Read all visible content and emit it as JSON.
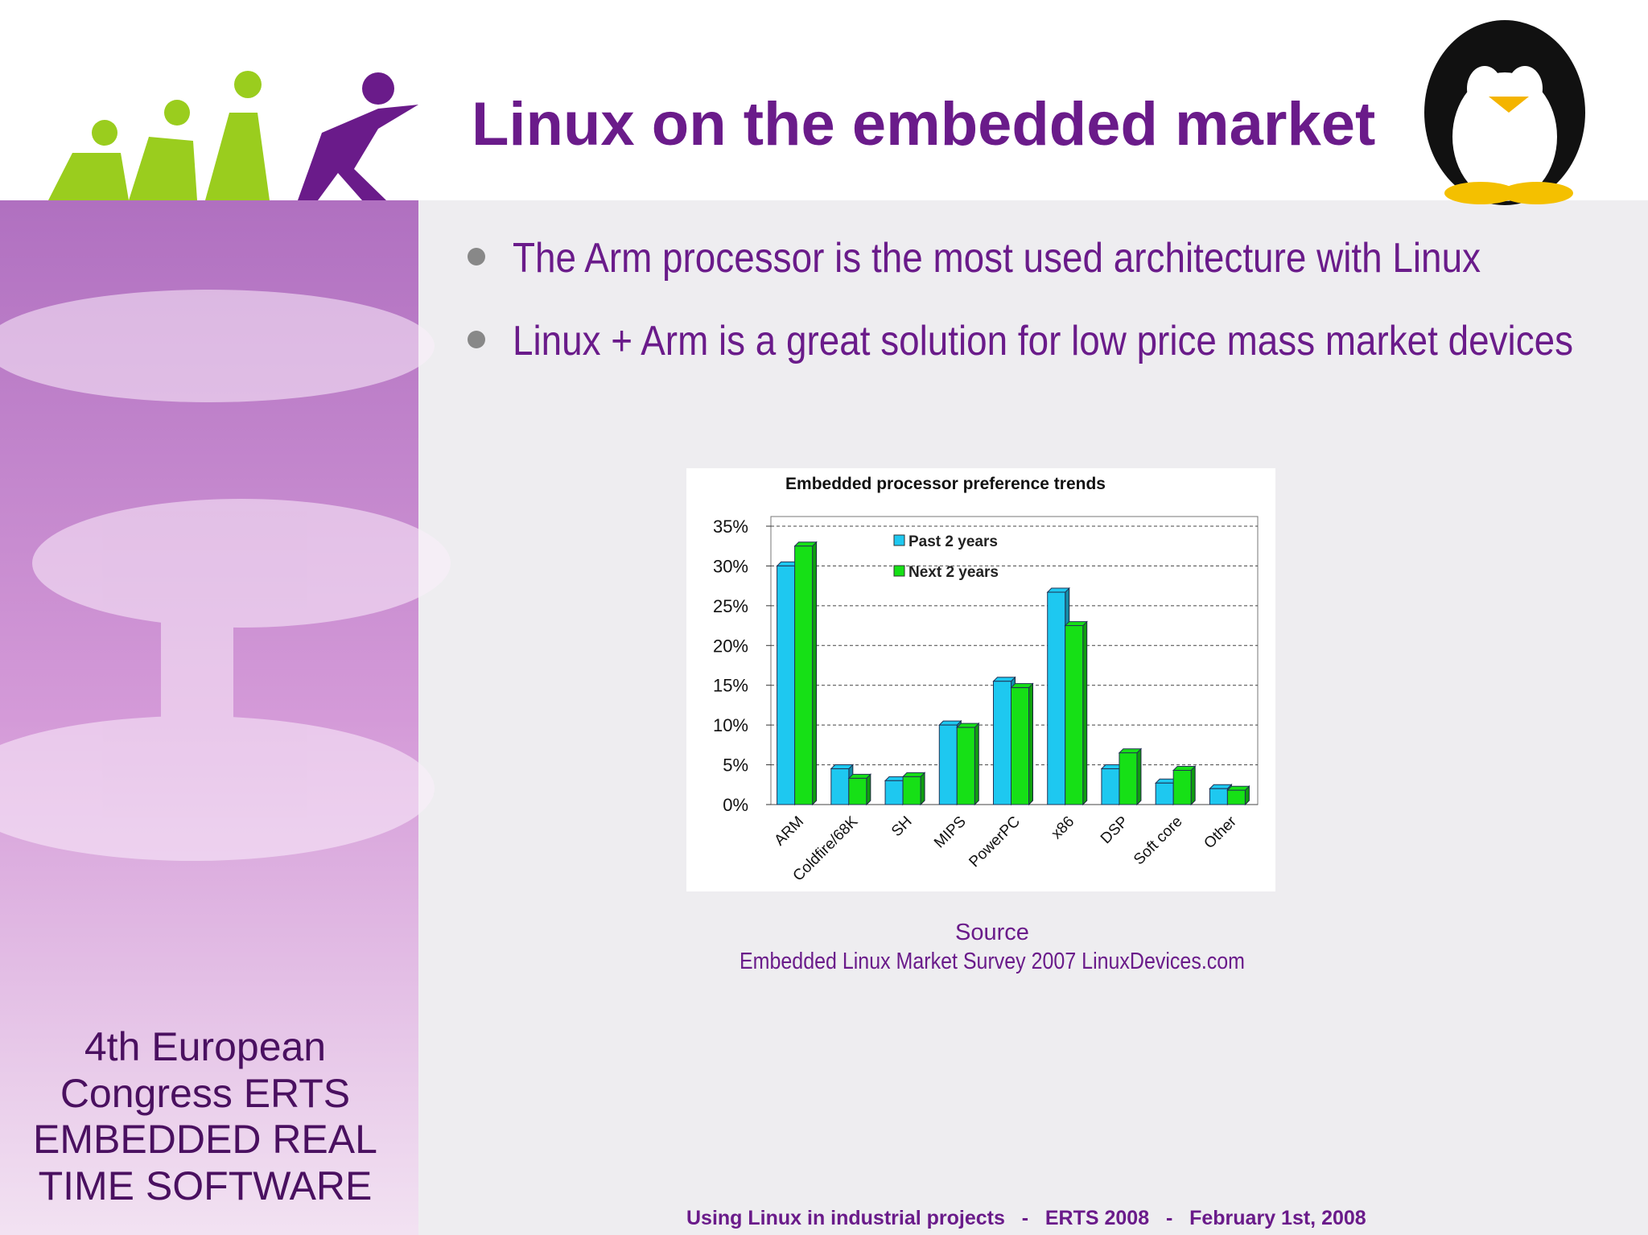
{
  "title": "Linux on the embedded market",
  "bullets": [
    "The Arm processor is the most used architecture with Linux",
    "Linux + Arm is a great solution for low price mass market devices"
  ],
  "chart_data": {
    "type": "bar",
    "title": "Embedded processor preference trends",
    "categories": [
      "ARM",
      "Coldfire/68K",
      "SH",
      "MIPS",
      "PowerPC",
      "x86",
      "DSP",
      "Soft core",
      "Other"
    ],
    "series": [
      {
        "name": "Past 2 years",
        "color": "#1ec8f0",
        "values": [
          30,
          4.5,
          3,
          10,
          15.5,
          26.7,
          4.5,
          2.7,
          2
        ]
      },
      {
        "name": "Next 2 years",
        "color": "#16e016",
        "values": [
          32.5,
          3.3,
          3.5,
          9.7,
          14.7,
          22.5,
          6.5,
          4.3,
          1.8
        ]
      }
    ],
    "ylim": [
      0,
      35
    ],
    "yticks": [
      {
        "value": 0,
        "label": "0%"
      },
      {
        "value": 5,
        "label": "5%"
      },
      {
        "value": 10,
        "label": "10%"
      },
      {
        "value": 15,
        "label": "15%"
      },
      {
        "value": 20,
        "label": "20%"
      },
      {
        "value": 25,
        "label": "25%"
      },
      {
        "value": 30,
        "label": "30%"
      },
      {
        "value": 35,
        "label": "35%"
      }
    ],
    "grid": true
  },
  "source": [
    "Source",
    "Embedded Linux Market Survey 2007 LinuxDevices.com"
  ],
  "sidebar": [
    "4th European",
    "Congress ERTS",
    "EMBEDDED REAL",
    "TIME SOFTWARE"
  ],
  "footer": "Using Linux in industrial projects   -   ERTS 2008   -   February 1st, 2008"
}
